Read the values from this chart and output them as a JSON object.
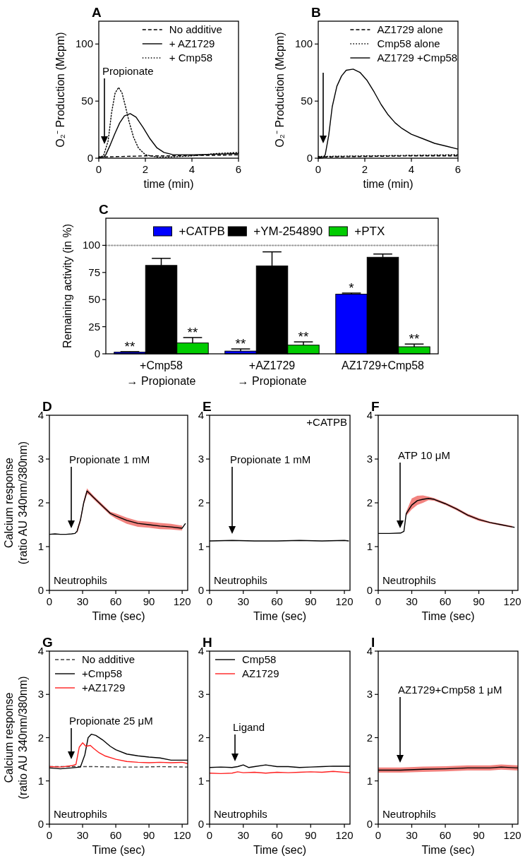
{
  "chart_data": [
    {
      "type": "line",
      "title": "A",
      "xlabel": "time (min)",
      "ylabel": "O₂⁻ Production (Mcpm)",
      "xlim": [
        0,
        6
      ],
      "xticks": [
        0,
        2,
        4,
        6
      ],
      "ylim": [
        0,
        120
      ],
      "yticks": [
        0,
        50,
        100
      ],
      "legend": "top right",
      "series": [
        {
          "name": "No additive",
          "color": "#000000",
          "line_style": "dashed",
          "x": [
            0,
            1,
            2,
            3,
            4,
            5,
            6
          ],
          "values": [
            1,
            1.5,
            2,
            2,
            2.5,
            2.5,
            3
          ]
        },
        {
          "name": "+ AZ1729",
          "color": "#000000",
          "line_style": "solid",
          "x": [
            0,
            0.2,
            0.3,
            0.5,
            0.7,
            0.9,
            1.1,
            1.35,
            1.6,
            1.9,
            2.2,
            2.5,
            2.8,
            3.2,
            4,
            5,
            6
          ],
          "values": [
            0.5,
            1,
            3,
            12,
            22,
            31,
            37,
            39,
            36,
            27,
            17,
            9,
            5,
            3,
            3,
            3.5,
            4
          ]
        },
        {
          "name": "+ Cmp58",
          "color": "#000000",
          "line_style": "dotted",
          "x": [
            0,
            0.2,
            0.4,
            0.55,
            0.7,
            0.85,
            1,
            1.15,
            1.3,
            1.5,
            1.7,
            2,
            2.5,
            3,
            4,
            5,
            6
          ],
          "values": [
            1,
            2,
            15,
            40,
            57,
            62,
            57,
            45,
            32,
            18,
            9,
            3,
            1,
            1,
            2,
            4,
            5
          ]
        }
      ],
      "annotations": [
        "Propionate"
      ]
    },
    {
      "type": "line",
      "title": "B",
      "xlabel": "time (min)",
      "ylabel": "O₂⁻ Production (Mcpm)",
      "xlim": [
        0,
        6
      ],
      "xticks": [
        0,
        2,
        4,
        6
      ],
      "ylim": [
        0,
        120
      ],
      "yticks": [
        0,
        50,
        100
      ],
      "legend": "top right",
      "series": [
        {
          "name": "AZ1729 alone",
          "color": "#000000",
          "line_style": "dashed",
          "x": [
            0,
            2,
            4,
            6
          ],
          "values": [
            1,
            1.5,
            2,
            2
          ]
        },
        {
          "name": "Cmp58 alone",
          "color": "#000000",
          "line_style": "dotted",
          "x": [
            0,
            2,
            4,
            6
          ],
          "values": [
            1.5,
            2,
            2.5,
            3
          ]
        },
        {
          "name": "AZ1729 +Cmp58",
          "color": "#000000",
          "line_style": "solid",
          "x": [
            0,
            0.2,
            0.3,
            0.45,
            0.6,
            0.8,
            1,
            1.2,
            1.5,
            1.8,
            2.1,
            2.4,
            2.7,
            3,
            3.3,
            3.6,
            4,
            4.5,
            5,
            5.5,
            6
          ],
          "values": [
            0,
            0.5,
            3,
            20,
            45,
            63,
            72,
            77,
            78,
            75,
            68,
            58,
            47,
            38,
            31,
            26,
            21,
            17,
            13,
            10.5,
            8
          ]
        }
      ]
    },
    {
      "type": "bar",
      "title": "C",
      "ylabel": "Remaining activity (in %)",
      "categories": [
        "+Cmp58\n→ Propionate",
        "+AZ1729\n→ Propionate",
        "AZ1729+Cmp58"
      ],
      "ylim": [
        0,
        125
      ],
      "yticks": [
        0,
        25,
        50,
        75,
        100
      ],
      "legend": "top",
      "series": [
        {
          "name": "+CATPB",
          "color": "#0000ff",
          "values": [
            1.5,
            2.5,
            55
          ],
          "errors": [
            [
              1.5,
              2
            ],
            [
              2.5,
              4.5
            ],
            [
              55,
              56
            ]
          ],
          "value_labels": [
            "**",
            "**",
            "*"
          ]
        },
        {
          "name": "+YM-254890",
          "color": "#000000",
          "values": [
            81.5,
            81,
            89
          ],
          "errors": [
            [
              81.5,
              88
            ],
            [
              81,
              94
            ],
            [
              89,
              92
            ]
          ],
          "value_labels": [
            null,
            null,
            null
          ]
        },
        {
          "name": "+PTX",
          "color": "#00cc00",
          "values": [
            10,
            8,
            6.5
          ],
          "errors": [
            [
              10,
              15
            ],
            [
              8,
              11
            ],
            [
              6.5,
              9
            ]
          ],
          "value_labels": [
            "**",
            "**",
            "**"
          ]
        }
      ],
      "ref_lines": [
        {
          "axis": "y",
          "value": 100,
          "color": "#999999",
          "line_style": "dotted"
        }
      ]
    },
    {
      "type": "line",
      "title": "D",
      "xlabel": "Time (sec)",
      "ylabel": "Calcium response\n(ratio AU 340nm/380nm)",
      "xlim": [
        0,
        125
      ],
      "xticks": [
        0,
        30,
        60,
        90,
        120
      ],
      "ylim": [
        0,
        4
      ],
      "yticks": [
        0,
        1,
        2,
        3,
        4
      ],
      "series": [
        {
          "color": "#000000",
          "x": [
            0,
            5,
            10,
            15,
            20,
            23,
            25,
            28,
            31,
            34,
            36,
            40,
            45,
            50,
            55,
            60,
            70,
            80,
            90,
            100,
            110,
            120,
            123
          ],
          "values": [
            1.28,
            1.29,
            1.28,
            1.28,
            1.29,
            1.3,
            1.35,
            1.6,
            2.0,
            2.27,
            2.22,
            2.12,
            2.0,
            1.88,
            1.76,
            1.7,
            1.6,
            1.53,
            1.5,
            1.47,
            1.45,
            1.42,
            1.53
          ],
          "lower": [
            null,
            null,
            null,
            null,
            null,
            null,
            1.3,
            1.55,
            1.95,
            2.2,
            2.18,
            2.08,
            1.96,
            1.84,
            1.72,
            1.64,
            1.52,
            1.45,
            1.43,
            1.4,
            1.39,
            1.37,
            null
          ],
          "upper": [
            null,
            null,
            null,
            null,
            null,
            null,
            1.4,
            1.65,
            2.05,
            2.33,
            2.27,
            2.16,
            2.04,
            1.92,
            1.8,
            1.76,
            1.66,
            1.59,
            1.57,
            1.54,
            1.52,
            1.48,
            null
          ]
        }
      ],
      "annotations": [
        "Neutrophils",
        "Propionate 1 mM"
      ]
    },
    {
      "type": "line",
      "title": "E",
      "xlabel": "Time (sec)",
      "xlim": [
        0,
        125
      ],
      "xticks": [
        0,
        30,
        60,
        90,
        120
      ],
      "ylim": [
        0,
        4
      ],
      "yticks": [
        0,
        1,
        2,
        3,
        4
      ],
      "series": [
        {
          "color": "#000000",
          "x": [
            0,
            20,
            40,
            60,
            80,
            100,
            120,
            124
          ],
          "values": [
            1.13,
            1.14,
            1.13,
            1.13,
            1.14,
            1.13,
            1.14,
            1.13
          ]
        }
      ],
      "annotations": [
        "Neutrophils",
        "+CATPB",
        "Propionate 1 mM"
      ]
    },
    {
      "type": "line",
      "title": "F",
      "xlabel": "Time (sec)",
      "xlim": [
        0,
        125
      ],
      "xticks": [
        0,
        30,
        60,
        90,
        120
      ],
      "ylim": [
        0,
        4
      ],
      "yticks": [
        0,
        1,
        2,
        3,
        4
      ],
      "series": [
        {
          "color": "#000000",
          "x": [
            0,
            10,
            20,
            23,
            25,
            30,
            35,
            40,
            45,
            50,
            60,
            70,
            80,
            90,
            100,
            110,
            120,
            122
          ],
          "values": [
            1.3,
            1.3,
            1.31,
            1.35,
            1.75,
            1.95,
            2.05,
            2.08,
            2.1,
            2.08,
            1.98,
            1.86,
            1.72,
            1.62,
            1.55,
            1.5,
            1.45,
            1.44
          ],
          "lower": [
            null,
            null,
            null,
            null,
            1.7,
            1.85,
            1.95,
            2.0,
            2.06,
            2.05,
            1.95,
            1.83,
            1.69,
            1.59,
            1.53,
            1.48,
            1.43,
            null
          ],
          "upper": [
            null,
            null,
            null,
            null,
            1.8,
            2.1,
            2.16,
            2.17,
            2.14,
            2.11,
            2.01,
            1.89,
            1.75,
            1.65,
            1.57,
            1.52,
            1.47,
            null
          ]
        }
      ],
      "annotations": [
        "Neutrophils",
        "ATP 10 μM"
      ]
    },
    {
      "type": "line",
      "title": "G",
      "xlabel": "Time (sec)",
      "ylabel": "Calcium response\n(ratio AU 340nm/380nm)",
      "xlim": [
        0,
        125
      ],
      "xticks": [
        0,
        30,
        60,
        90,
        120
      ],
      "ylim": [
        0,
        4
      ],
      "yticks": [
        0,
        1,
        2,
        3,
        4
      ],
      "legend": "top left",
      "series": [
        {
          "name": "No additive",
          "color": "#404040",
          "line_style": "dashed",
          "x": [
            0,
            20,
            40,
            60,
            80,
            100,
            125
          ],
          "values": [
            1.33,
            1.33,
            1.33,
            1.32,
            1.32,
            1.33,
            1.32
          ]
        },
        {
          "name": "+Cmp58",
          "color": "#000000",
          "line_style": "solid",
          "x": [
            0,
            10,
            20,
            28,
            32,
            35,
            38,
            42,
            48,
            55,
            60,
            70,
            80,
            90,
            100,
            110,
            125
          ],
          "values": [
            1.3,
            1.28,
            1.3,
            1.32,
            1.6,
            2.0,
            2.08,
            2.05,
            1.95,
            1.8,
            1.72,
            1.62,
            1.58,
            1.55,
            1.53,
            1.48,
            1.48
          ]
        },
        {
          "name": "+AZ1729",
          "color": "#ff2020",
          "line_style": "solid",
          "x": [
            0,
            10,
            20,
            24,
            27,
            30,
            33,
            37,
            40,
            45,
            50,
            60,
            70,
            80,
            90,
            100,
            110,
            120,
            125
          ],
          "values": [
            1.33,
            1.32,
            1.35,
            1.38,
            1.78,
            1.88,
            1.8,
            1.82,
            1.75,
            1.65,
            1.58,
            1.5,
            1.45,
            1.43,
            1.42,
            1.43,
            1.42,
            1.43,
            1.4
          ]
        }
      ],
      "annotations": [
        "Neutrophils",
        "Propionate 25 μM"
      ]
    },
    {
      "type": "line",
      "title": "H",
      "xlabel": "Time (sec)",
      "xlim": [
        0,
        125
      ],
      "xticks": [
        0,
        30,
        60,
        90,
        120
      ],
      "ylim": [
        0,
        4
      ],
      "yticks": [
        0,
        1,
        2,
        3,
        4
      ],
      "legend": "top left",
      "series": [
        {
          "name": "Cmp58",
          "color": "#000000",
          "x": [
            0,
            10,
            20,
            25,
            30,
            35,
            40,
            50,
            60,
            70,
            80,
            90,
            100,
            110,
            125
          ],
          "values": [
            1.31,
            1.32,
            1.31,
            1.33,
            1.37,
            1.31,
            1.33,
            1.37,
            1.33,
            1.33,
            1.31,
            1.32,
            1.33,
            1.34,
            1.34
          ]
        },
        {
          "name": "AZ1729",
          "color": "#ff2020",
          "x": [
            0,
            10,
            20,
            25,
            30,
            40,
            50,
            60,
            70,
            80,
            90,
            100,
            110,
            125
          ],
          "values": [
            1.18,
            1.17,
            1.18,
            1.21,
            1.19,
            1.2,
            1.18,
            1.2,
            1.19,
            1.2,
            1.21,
            1.2,
            1.22,
            1.19
          ]
        }
      ],
      "annotations": [
        "Neutrophils",
        "Ligand"
      ]
    },
    {
      "type": "line",
      "title": "I",
      "xlabel": "Time (sec)",
      "xlim": [
        0,
        125
      ],
      "xticks": [
        0,
        30,
        60,
        90,
        120
      ],
      "ylim": [
        0,
        4
      ],
      "yticks": [
        0,
        1,
        2,
        3,
        4
      ],
      "series": [
        {
          "color": "#000000",
          "x": [
            0,
            20,
            40,
            60,
            80,
            100,
            110,
            125
          ],
          "values": [
            1.25,
            1.25,
            1.27,
            1.28,
            1.3,
            1.3,
            1.32,
            1.3
          ],
          "lower": [
            1.19,
            1.19,
            1.21,
            1.22,
            1.24,
            1.24,
            1.26,
            1.24
          ],
          "upper": [
            1.31,
            1.31,
            1.33,
            1.34,
            1.36,
            1.36,
            1.38,
            1.36
          ]
        }
      ],
      "annotations": [
        "Neutrophils",
        "AZ1729+Cmp58 1 μM"
      ]
    }
  ]
}
